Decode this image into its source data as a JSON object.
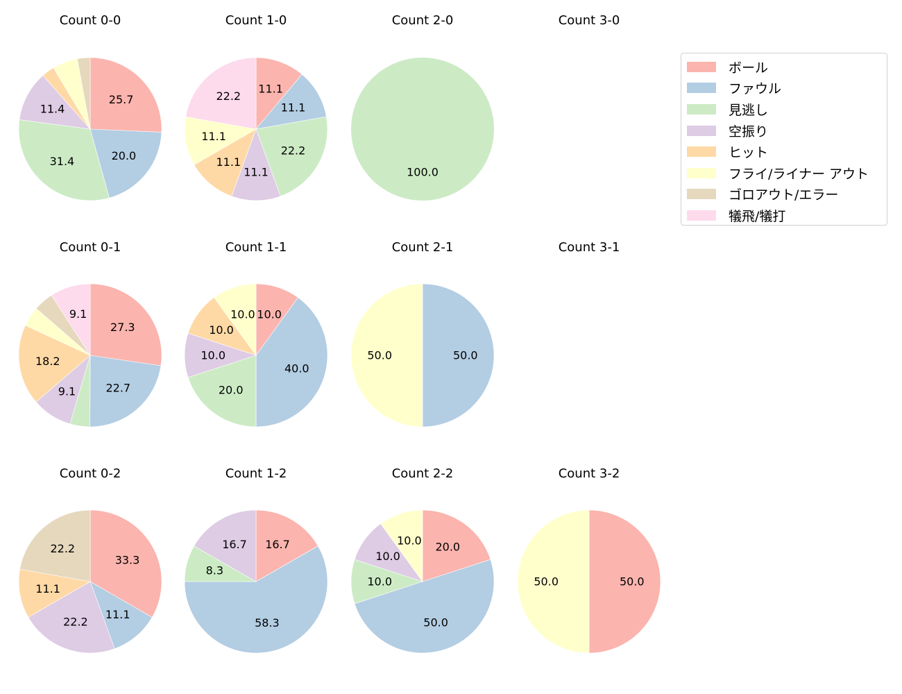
{
  "chart_data": {
    "type": "pie",
    "categories": [
      "ボール",
      "ファウル",
      "見逃し",
      "空振り",
      "ヒット",
      "フライ/ライナー アウト",
      "ゴロアウト/エラー",
      "犠飛/犠打"
    ],
    "colors": [
      "#fbb4ae",
      "#b3cde3",
      "#ccebc5",
      "#decbe4",
      "#fed9a6",
      "#ffffcc",
      "#e5d8bd",
      "#fddaec"
    ],
    "start_angle": 90,
    "direction": "clockwise",
    "legend_position": "upper right",
    "panels": [
      {
        "title": "Count 0-0",
        "row": 0,
        "col": 0,
        "values": [
          25.7,
          20.0,
          31.4,
          11.4,
          2.9,
          5.7,
          2.9,
          0
        ],
        "labels": [
          "25.7",
          "20.0",
          "31.4",
          "11.4",
          "",
          "",
          "",
          ""
        ]
      },
      {
        "title": "Count 1-0",
        "row": 0,
        "col": 1,
        "values": [
          11.1,
          11.1,
          22.2,
          11.1,
          11.1,
          11.1,
          0,
          22.2
        ],
        "labels": [
          "11.1",
          "11.1",
          "22.2",
          "11.1",
          "11.1",
          "11.1",
          "",
          "22.2"
        ]
      },
      {
        "title": "Count 2-0",
        "row": 0,
        "col": 2,
        "values": [
          0,
          0,
          100.0,
          0,
          0,
          0,
          0,
          0
        ],
        "labels": [
          "",
          "",
          "100.0",
          "",
          "",
          "",
          "",
          ""
        ]
      },
      {
        "title": "Count 3-0",
        "row": 0,
        "col": 3,
        "values": [],
        "labels": []
      },
      {
        "title": "Count 0-1",
        "row": 1,
        "col": 0,
        "values": [
          27.3,
          22.7,
          4.5,
          9.1,
          18.2,
          4.5,
          4.5,
          9.1
        ],
        "labels": [
          "27.3",
          "22.7",
          "",
          "9.1",
          "18.2",
          "",
          "",
          "9.1"
        ]
      },
      {
        "title": "Count 1-1",
        "row": 1,
        "col": 1,
        "values": [
          10.0,
          40.0,
          20.0,
          10.0,
          10.0,
          10.0,
          0,
          0
        ],
        "labels": [
          "10.0",
          "40.0",
          "20.0",
          "10.0",
          "10.0",
          "10.0",
          "",
          ""
        ]
      },
      {
        "title": "Count 2-1",
        "row": 1,
        "col": 2,
        "values": [
          0,
          50.0,
          0,
          0,
          0,
          50.0,
          0,
          0
        ],
        "labels": [
          "",
          "50.0",
          "",
          "",
          "",
          "50.0",
          "",
          ""
        ]
      },
      {
        "title": "Count 3-1",
        "row": 1,
        "col": 3,
        "values": [],
        "labels": []
      },
      {
        "title": "Count 0-2",
        "row": 2,
        "col": 0,
        "values": [
          33.3,
          11.1,
          0,
          22.2,
          11.1,
          0,
          22.2,
          0
        ],
        "labels": [
          "33.3",
          "11.1",
          "",
          "22.2",
          "11.1",
          "",
          "22.2",
          ""
        ]
      },
      {
        "title": "Count 1-2",
        "row": 2,
        "col": 1,
        "values": [
          16.7,
          58.3,
          8.3,
          16.7,
          0,
          0,
          0,
          0
        ],
        "labels": [
          "16.7",
          "58.3",
          "8.3",
          "16.7",
          "",
          "",
          "",
          ""
        ]
      },
      {
        "title": "Count 2-2",
        "row": 2,
        "col": 2,
        "values": [
          20.0,
          50.0,
          10.0,
          10.0,
          0,
          10.0,
          0,
          0
        ],
        "labels": [
          "20.0",
          "50.0",
          "10.0",
          "10.0",
          "",
          "10.0",
          "",
          ""
        ]
      },
      {
        "title": "Count 3-2",
        "row": 2,
        "col": 3,
        "values": [
          50.0,
          0,
          0,
          0,
          0,
          50.0,
          0,
          0
        ],
        "labels": [
          "50.0",
          "",
          "",
          "",
          "",
          "50.0",
          "",
          ""
        ]
      }
    ]
  },
  "legend": {
    "items": [
      {
        "label": "ボール",
        "color": "#fbb4ae"
      },
      {
        "label": "ファウル",
        "color": "#b3cde3"
      },
      {
        "label": "見逃し",
        "color": "#ccebc5"
      },
      {
        "label": "空振り",
        "color": "#decbe4"
      },
      {
        "label": "ヒット",
        "color": "#fed9a6"
      },
      {
        "label": "フライ/ライナー アウト",
        "color": "#ffffcc"
      },
      {
        "label": "ゴロアウト/エラー",
        "color": "#e5d8bd"
      },
      {
        "label": "犠飛/犠打",
        "color": "#fddaec"
      }
    ]
  }
}
